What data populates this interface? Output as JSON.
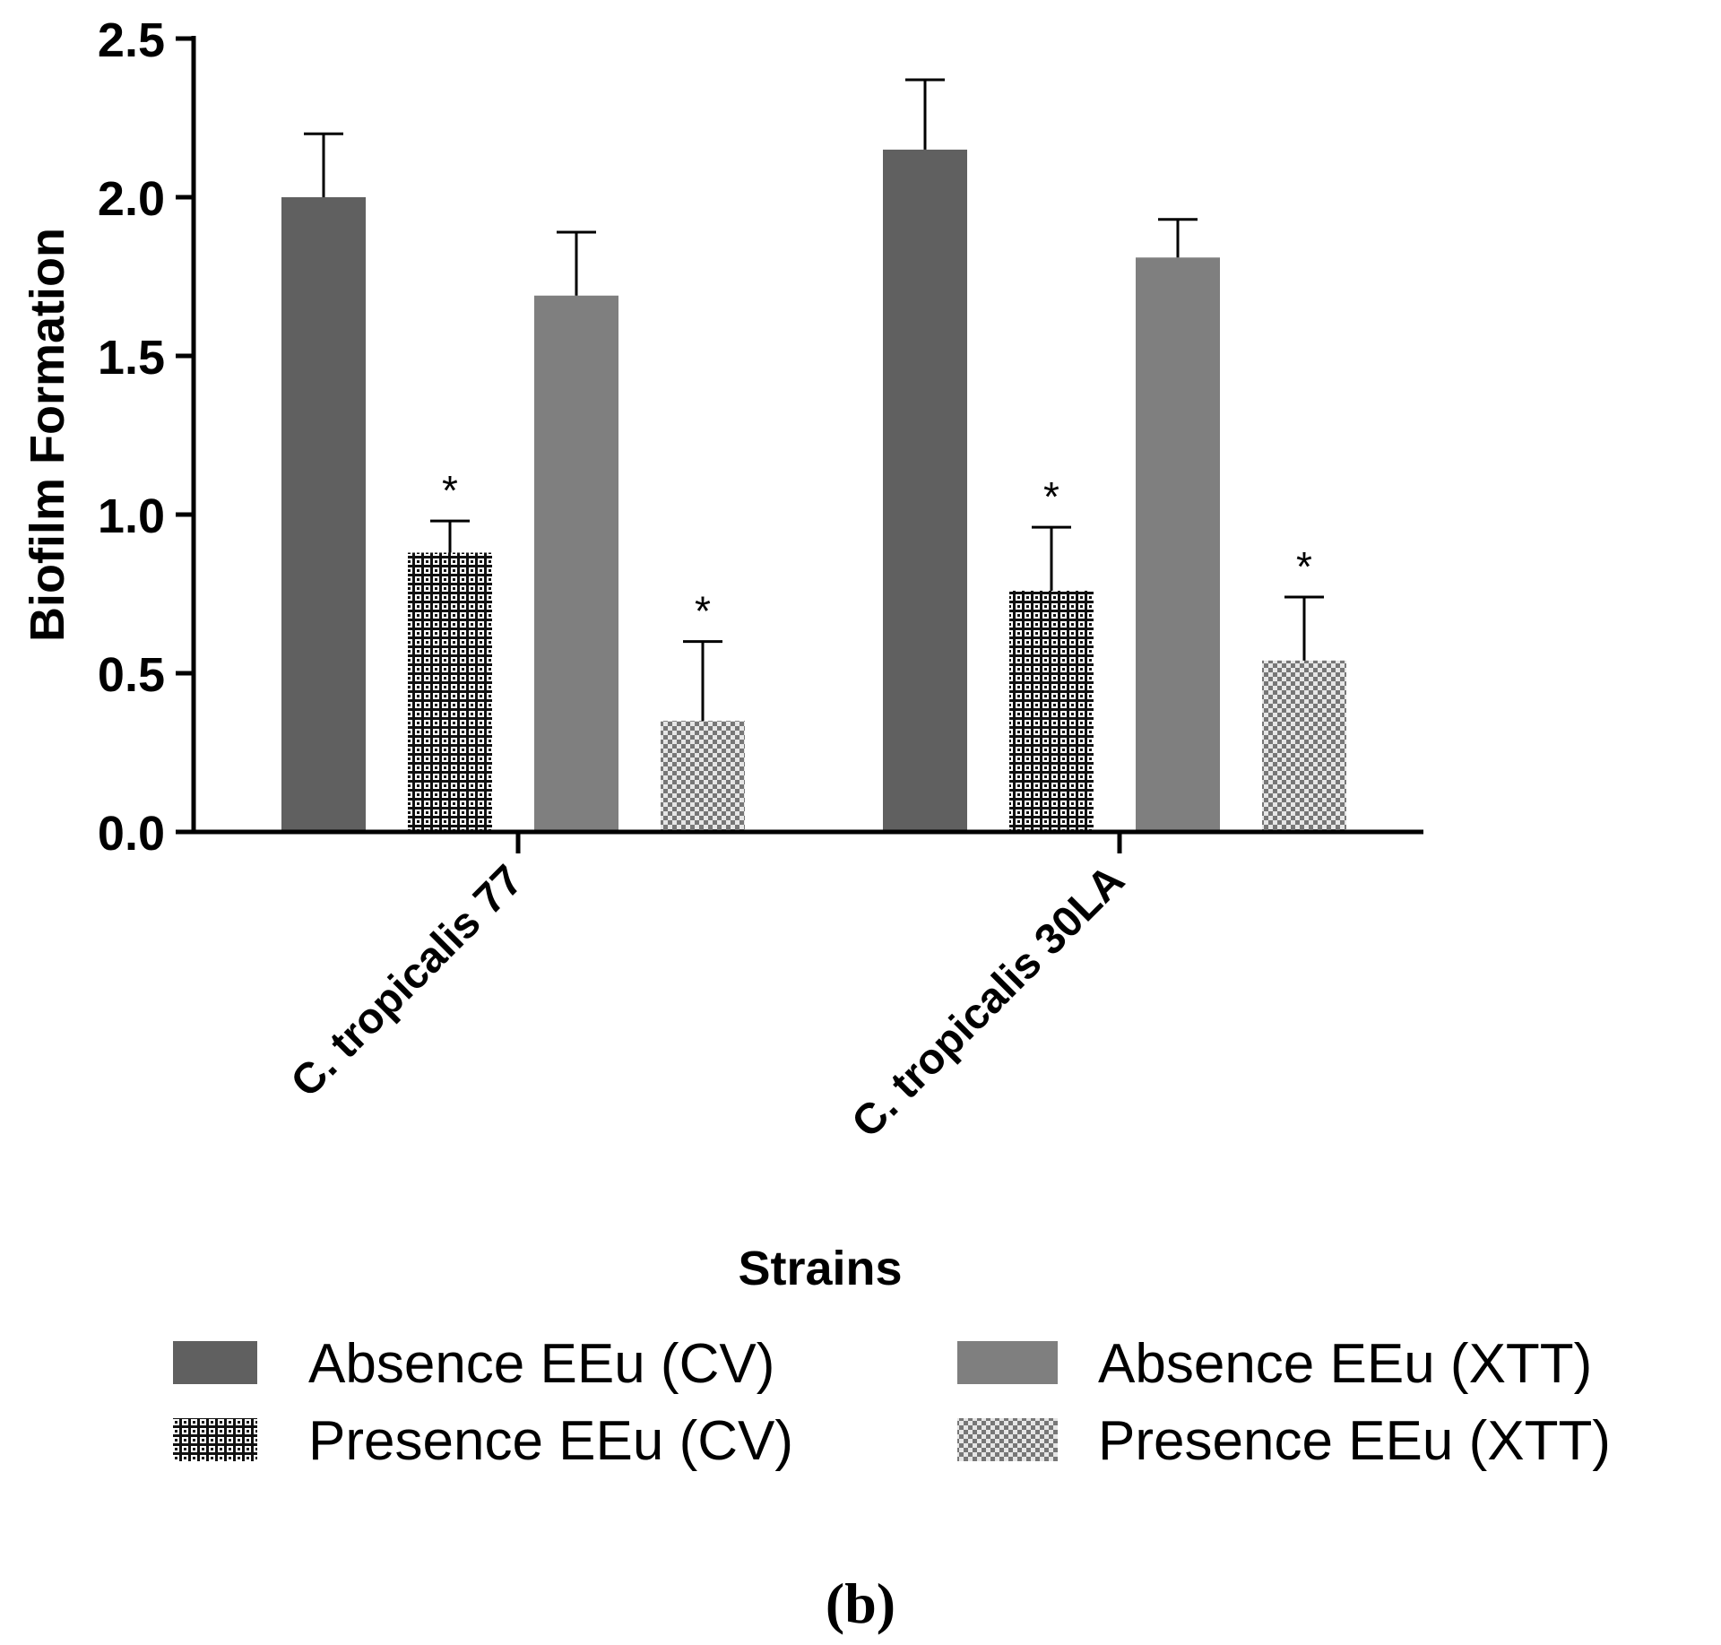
{
  "chart_data": {
    "type": "bar",
    "title": "",
    "xlabel": "Strains",
    "ylabel": "Biofilm Formation",
    "ylim": [
      0,
      2.5
    ],
    "yticks": [
      "0.0",
      "0.5",
      "1.0",
      "1.5",
      "2.0",
      "2.5"
    ],
    "categories": [
      "C. tropicalis 77",
      "C. tropicalis 30LA"
    ],
    "series": [
      {
        "name": "Absence EEu (CV)",
        "values": [
          2.0,
          2.15
        ],
        "errors": [
          0.2,
          0.22
        ],
        "significance": [
          "",
          ""
        ],
        "color": "#606060",
        "pattern": "solid"
      },
      {
        "name": "Presence EEu (CV)",
        "values": [
          0.88,
          0.76
        ],
        "errors": [
          0.1,
          0.2
        ],
        "significance": [
          "*",
          "*"
        ],
        "color": "#1a1a1a",
        "pattern": "grid"
      },
      {
        "name": "Absence EEu (XTT)",
        "values": [
          1.69,
          1.81
        ],
        "errors": [
          0.2,
          0.12
        ],
        "significance": [
          "",
          ""
        ],
        "color": "#7f7f7f",
        "pattern": "solid"
      },
      {
        "name": "Presence EEu (XTT)",
        "values": [
          0.35,
          0.54
        ],
        "errors": [
          0.25,
          0.2
        ],
        "significance": [
          "*",
          "*"
        ],
        "color": "#999999",
        "pattern": "checker"
      }
    ],
    "legend_position": "bottom",
    "panel_label": "(b)"
  }
}
